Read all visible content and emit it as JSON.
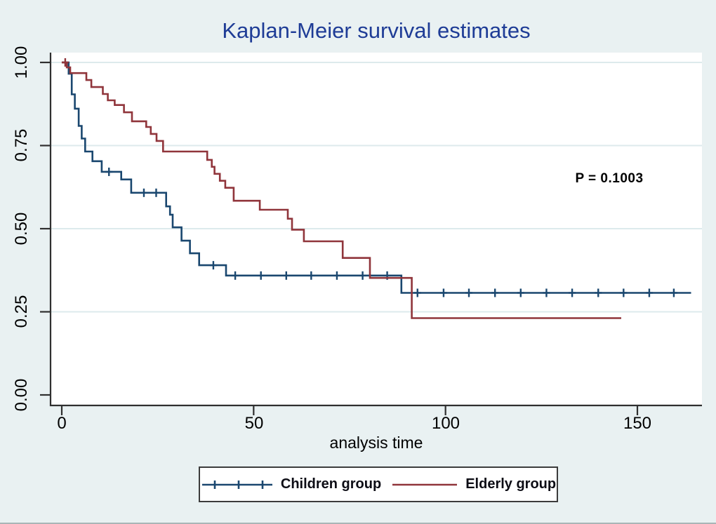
{
  "chart_data": {
    "type": "line",
    "subtype": "kaplan-meier-step",
    "title": "Kaplan-Meier survival estimates",
    "xlabel": "analysis time",
    "ylabel": "",
    "xlim": [
      0,
      167
    ],
    "ylim": [
      0,
      1
    ],
    "xticks": [
      "0",
      "50",
      "100",
      "150"
    ],
    "xtick_values": [
      0,
      50,
      100,
      150
    ],
    "yticks": [
      "0.00",
      "0.25",
      "0.50",
      "0.75",
      "1.00"
    ],
    "ytick_values": [
      0,
      0.25,
      0.5,
      0.75,
      1.0
    ],
    "grid": true,
    "gridline_values": [
      0.25,
      0.5,
      0.75,
      1.0
    ],
    "legend_position": "bottom",
    "annotation": "P = 0.1003",
    "series": [
      {
        "name": "Children group",
        "color": "#1a476f",
        "end_time": 164,
        "steps": [
          [
            0,
            1.0
          ],
          [
            1.8,
            0.966
          ],
          [
            2.6,
            0.904
          ],
          [
            3.4,
            0.861
          ],
          [
            4.4,
            0.809
          ],
          [
            5.2,
            0.771
          ],
          [
            6.1,
            0.732
          ],
          [
            8.0,
            0.703
          ],
          [
            10.4,
            0.671
          ],
          [
            15.5,
            0.648
          ],
          [
            18.1,
            0.608
          ],
          [
            27.2,
            0.567
          ],
          [
            28.2,
            0.542
          ],
          [
            28.9,
            0.504
          ],
          [
            31.2,
            0.464
          ],
          [
            33.4,
            0.426
          ],
          [
            35.8,
            0.39
          ],
          [
            42.8,
            0.359
          ],
          [
            88.5,
            0.307
          ]
        ],
        "censored": [
          [
            12.3,
            0.671
          ],
          [
            21.4,
            0.608
          ],
          [
            24.6,
            0.608
          ],
          [
            39.5,
            0.39
          ],
          [
            45.2,
            0.359
          ],
          [
            51.9,
            0.359
          ],
          [
            58.5,
            0.359
          ],
          [
            65.0,
            0.359
          ],
          [
            71.7,
            0.359
          ],
          [
            78.4,
            0.359
          ],
          [
            84.8,
            0.359
          ],
          [
            92.7,
            0.307
          ],
          [
            99.5,
            0.307
          ],
          [
            106.1,
            0.307
          ],
          [
            112.9,
            0.307
          ],
          [
            119.6,
            0.307
          ],
          [
            126.3,
            0.307
          ],
          [
            133.0,
            0.307
          ],
          [
            139.8,
            0.307
          ],
          [
            146.4,
            0.307
          ],
          [
            153.1,
            0.307
          ],
          [
            159.5,
            0.307
          ]
        ]
      },
      {
        "name": "Elderly group",
        "color": "#90353b",
        "end_time": 145.8,
        "steps": [
          [
            0,
            1.0
          ],
          [
            1.3,
            0.985
          ],
          [
            2.2,
            0.968
          ],
          [
            6.4,
            0.947
          ],
          [
            7.7,
            0.926
          ],
          [
            10.7,
            0.905
          ],
          [
            12.0,
            0.886
          ],
          [
            13.8,
            0.872
          ],
          [
            16.2,
            0.85
          ],
          [
            18.3,
            0.823
          ],
          [
            22.0,
            0.806
          ],
          [
            23.2,
            0.785
          ],
          [
            24.7,
            0.764
          ],
          [
            26.4,
            0.732
          ],
          [
            37.9,
            0.707
          ],
          [
            39.1,
            0.686
          ],
          [
            39.8,
            0.665
          ],
          [
            41.2,
            0.644
          ],
          [
            42.6,
            0.623
          ],
          [
            44.8,
            0.584
          ],
          [
            51.6,
            0.557
          ],
          [
            58.9,
            0.53
          ],
          [
            60.0,
            0.497
          ],
          [
            63.1,
            0.462
          ],
          [
            73.2,
            0.412
          ],
          [
            80.3,
            0.352
          ],
          [
            91.2,
            0.231
          ]
        ],
        "censored": [
          [
            0.9,
            1.0
          ]
        ]
      }
    ]
  },
  "colors": {
    "canvas": "#e9f1f2",
    "plot_bg": "#ffffff",
    "grid": "#ddeaec",
    "axis": "#2f2f2f",
    "title": "#1e3c96",
    "text": "#000000",
    "legend_border": "#3c3c3c"
  }
}
